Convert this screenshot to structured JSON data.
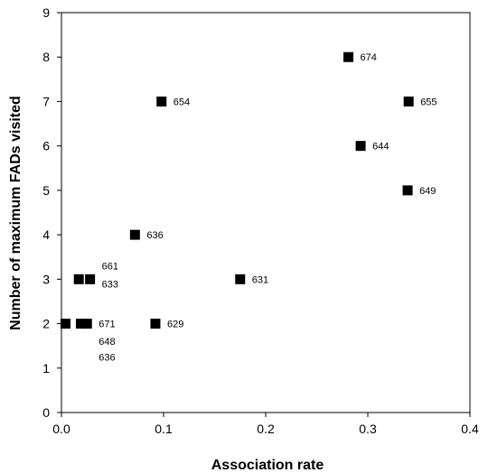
{
  "chart_data": {
    "type": "scatter",
    "title": "",
    "xlabel": "Association rate",
    "ylabel": "Number of maximum FADs visited",
    "xlim": [
      0,
      0.4
    ],
    "ylim": [
      0,
      9
    ],
    "xticks": [
      "0.0",
      "0.1",
      "0.2",
      "0.3",
      "0.4"
    ],
    "yticks": [
      "0",
      "1",
      "2",
      "3",
      "4",
      "5",
      "6",
      "7",
      "8",
      "9"
    ],
    "grid": false,
    "legend": "none",
    "marker_color": "#000000",
    "points": [
      {
        "x": 0.281,
        "y": 8
      },
      {
        "x": 0.098,
        "y": 7
      },
      {
        "x": 0.34,
        "y": 7
      },
      {
        "x": 0.293,
        "y": 6
      },
      {
        "x": 0.339,
        "y": 5
      },
      {
        "x": 0.072,
        "y": 4
      },
      {
        "x": 0.017,
        "y": 3
      },
      {
        "x": 0.028,
        "y": 3
      },
      {
        "x": 0.175,
        "y": 3
      },
      {
        "x": 0.004,
        "y": 2
      },
      {
        "x": 0.019,
        "y": 2
      },
      {
        "x": 0.025,
        "y": 2
      },
      {
        "x": 0.092,
        "y": 2
      }
    ],
    "labels": [
      {
        "text": "674",
        "x": 0.281,
        "y": 8
      },
      {
        "text": "654",
        "x": 0.098,
        "y": 7
      },
      {
        "text": "655",
        "x": 0.34,
        "y": 7
      },
      {
        "text": "644",
        "x": 0.293,
        "y": 6
      },
      {
        "text": "649",
        "x": 0.339,
        "y": 5
      },
      {
        "text": "636",
        "x": 0.072,
        "y": 4
      },
      {
        "text": "661",
        "x": 0.028,
        "y": 3.3
      },
      {
        "text": "633",
        "x": 0.028,
        "y": 2.9
      },
      {
        "text": "631",
        "x": 0.175,
        "y": 3
      },
      {
        "text": "671",
        "x": 0.025,
        "y": 2
      },
      {
        "text": "648",
        "x": 0.025,
        "y": 1.6
      },
      {
        "text": "636",
        "x": 0.025,
        "y": 1.25
      },
      {
        "text": "629",
        "x": 0.092,
        "y": 2
      }
    ]
  }
}
